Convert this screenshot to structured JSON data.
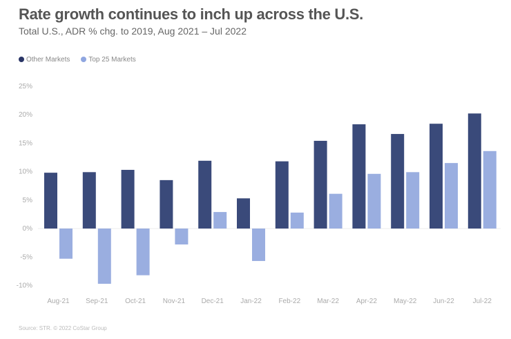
{
  "chart_data": {
    "type": "bar",
    "title": "Rate growth continues to inch up across the U.S.",
    "subtitle": "Total U.S., ADR % chg. to 2019, Aug 2021 – Jul 2022",
    "categories": [
      "Aug-21",
      "Sep-21",
      "Oct-21",
      "Nov-21",
      "Dec-21",
      "Jan-22",
      "Feb-22",
      "Mar-22",
      "Apr-22",
      "May-22",
      "Jun-22",
      "Jul-22"
    ],
    "series": [
      {
        "name": "Other Markets",
        "color": "#3a4a7a",
        "values": [
          9.8,
          9.9,
          10.3,
          8.5,
          11.9,
          5.3,
          11.8,
          15.4,
          18.3,
          16.6,
          18.4,
          20.2
        ]
      },
      {
        "name": "Top 25 Markets",
        "color": "#9aaee0",
        "values": [
          -5.3,
          -9.7,
          -8.2,
          -2.8,
          2.9,
          -5.7,
          2.8,
          6.1,
          9.6,
          9.9,
          11.5,
          13.6
        ]
      }
    ],
    "yticks": [
      "25%",
      "20%",
      "15%",
      "10%",
      "5%",
      "0%",
      "-5%",
      "-10%"
    ],
    "ytick_values": [
      25,
      20,
      15,
      10,
      5,
      0,
      -5,
      -10
    ],
    "ylim": [
      -10,
      25
    ],
    "xlabel": "",
    "ylabel": "",
    "legend": "top-left",
    "grid": false,
    "source": "Source: STR. © 2022 CoStar Group"
  }
}
